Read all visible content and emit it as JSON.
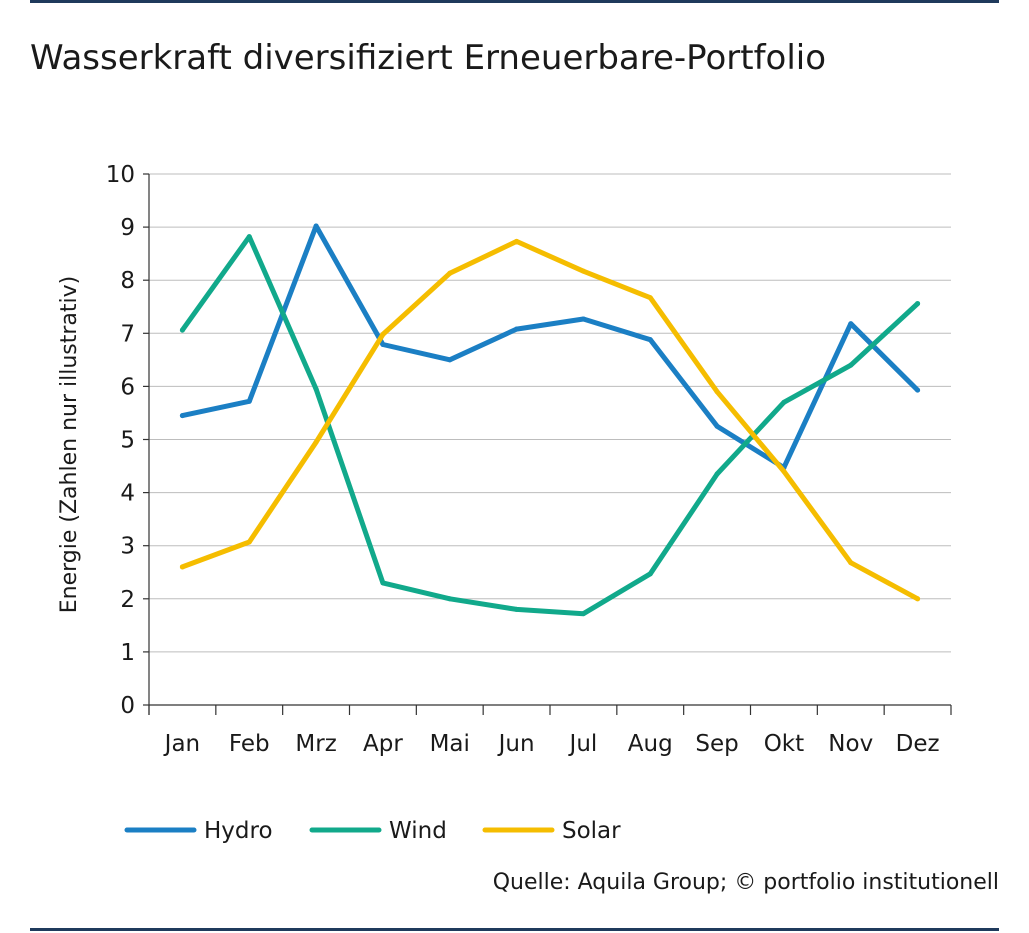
{
  "title": "Wasserkraft diversifiziert Erneuerbare-Portfolio",
  "source": "Quelle: Aquila Group; © portfolio institutionell",
  "chart_data": {
    "type": "line",
    "title": "Wasserkraft diversifiziert Erneuerbare-Portfolio",
    "ylabel": "Energie (Zahlen nur illustrativ)",
    "xlabel": "",
    "categories": [
      "Jan",
      "Feb",
      "Mrz",
      "Apr",
      "Mai",
      "Jun",
      "Jul",
      "Aug",
      "Sep",
      "Okt",
      "Nov",
      "Dez"
    ],
    "ylim": [
      0,
      10
    ],
    "yticks": [
      0,
      1,
      2,
      3,
      4,
      5,
      6,
      7,
      8,
      9,
      10
    ],
    "grid": true,
    "legend": "bottom-left",
    "series": [
      {
        "name": "Hydro",
        "color": "#1b7fc4",
        "values": [
          5.45,
          5.72,
          9.02,
          6.79,
          6.5,
          7.08,
          7.27,
          6.88,
          5.25,
          4.47,
          7.18,
          5.93
        ]
      },
      {
        "name": "Wind",
        "color": "#11a98b",
        "values": [
          7.06,
          8.82,
          5.95,
          2.3,
          2.0,
          1.8,
          1.72,
          2.47,
          4.35,
          5.7,
          6.4,
          7.56
        ]
      },
      {
        "name": "Solar",
        "color": "#f5bd00",
        "values": [
          2.6,
          3.07,
          4.95,
          6.98,
          8.13,
          8.73,
          8.17,
          7.67,
          5.9,
          4.4,
          2.68,
          2.0
        ]
      }
    ]
  }
}
